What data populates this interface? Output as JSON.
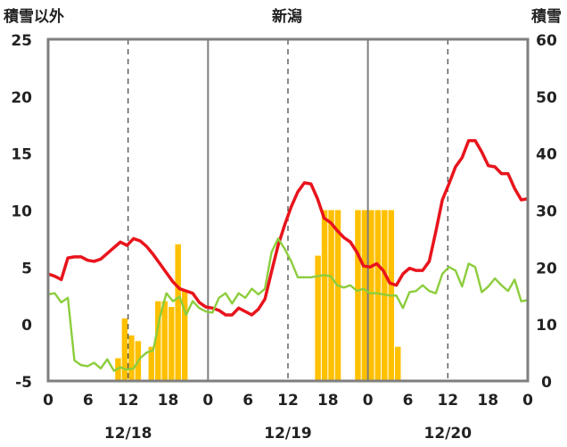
{
  "chart_data": {
    "type": "bar+line",
    "title": "新潟",
    "left_axis_label": "積雪以外",
    "right_axis_label": "積雪",
    "left_axis": {
      "min": -5,
      "max": 25,
      "ticks": [
        "25",
        "20",
        "15",
        "10",
        "5",
        "0",
        "-5"
      ]
    },
    "right_axis": {
      "min": 0,
      "max": 60,
      "ticks": [
        "60",
        "50",
        "40",
        "30",
        "20",
        "10",
        "0"
      ]
    },
    "x_axis": {
      "hour_ticks": [
        "0",
        "6",
        "12",
        "18",
        "0",
        "6",
        "12",
        "18",
        "0",
        "6",
        "12",
        "18",
        "0"
      ],
      "date_labels": [
        "12/18",
        "12/19",
        "12/20"
      ],
      "hours_total": 72
    },
    "grid": "dashed vertical at 12h, solid vertical at day boundaries",
    "colors": {
      "red": "#e8141c",
      "green": "#8ccd3c",
      "bars": "#ffc000",
      "baseline": "#7030a0",
      "frame": "#7f7f7f"
    },
    "series": [
      {
        "color": "red",
        "axis": "left",
        "values": [
          4.4,
          4.2,
          3.9,
          5.8,
          5.9,
          5.9,
          5.6,
          5.5,
          5.7,
          6.2,
          6.7,
          7.2,
          6.9,
          7.5,
          7.3,
          6.8,
          6.1,
          5.3,
          4.5,
          3.7,
          3.1,
          2.9,
          2.7,
          1.9,
          1.5,
          1.4,
          1.2,
          0.8,
          0.8,
          1.4,
          1.1,
          0.8,
          1.3,
          2.2,
          4.6,
          6.9,
          8.7,
          10.3,
          11.6,
          12.4,
          12.3,
          11,
          9.3,
          8.9,
          8.2,
          7.6,
          7.2,
          6.3,
          5.1,
          5,
          5.3,
          4.7,
          3.6,
          3.4,
          4.4,
          4.9,
          4.7,
          4.7,
          5.5,
          8.1,
          10.9,
          12.3,
          13.8,
          14.6,
          16.1,
          16.1,
          15.1,
          13.9,
          13.8,
          13.2,
          13.2,
          11.9,
          10.9,
          11
        ]
      },
      {
        "color": "green",
        "axis": "left",
        "values": [
          2.6,
          2.7,
          1.9,
          2.3,
          -3.2,
          -3.6,
          -3.7,
          -3.4,
          -3.9,
          -3.1,
          -4.1,
          -3.8,
          -4,
          -3.9,
          -3,
          -2.5,
          -2.3,
          0.6,
          2.7,
          2,
          2.4,
          0.8,
          2,
          1.4,
          1.1,
          1,
          2.3,
          2.7,
          1.8,
          2.7,
          2.3,
          3.1,
          2.6,
          3.1,
          6.3,
          7.5,
          6.6,
          5.5,
          4.1,
          4.1,
          4.1,
          4.2,
          4.3,
          4.2,
          3.4,
          3.2,
          3.4,
          2.9,
          3.1,
          2.7,
          2.7,
          2.6,
          2.5,
          2.5,
          1.4,
          2.8,
          2.9,
          3.4,
          2.9,
          2.7,
          4.4,
          5,
          4.7,
          3.3,
          5.3,
          5,
          2.8,
          3.3,
          4,
          3.4,
          2.9,
          3.9,
          2,
          2.1
        ]
      },
      {
        "color": "purple",
        "axis": "left",
        "values": [
          -5,
          -5
        ]
      }
    ],
    "bars": {
      "axis": "right",
      "color": "bars",
      "values": [
        0,
        0,
        0,
        0,
        0,
        0,
        0,
        0,
        0,
        0,
        4,
        11,
        8,
        7,
        0,
        6,
        14,
        14,
        13,
        24,
        16,
        0,
        0,
        0,
        0,
        0,
        0,
        0,
        0,
        0,
        0,
        0,
        0,
        0,
        0,
        0,
        0,
        0,
        0,
        0,
        22,
        30,
        30,
        30,
        0,
        0,
        30,
        30,
        30,
        30,
        30,
        30,
        6,
        0,
        0,
        0,
        0,
        0,
        0,
        0,
        0,
        0,
        0,
        0,
        0,
        0,
        0,
        0,
        0,
        0,
        0,
        0,
        0,
        0,
        0,
        0,
        0,
        0,
        0,
        0,
        0,
        0,
        0,
        0,
        0,
        0,
        0,
        0,
        0,
        0,
        0,
        0,
        0,
        0,
        0,
        0,
        0,
        0,
        0,
        0,
        0,
        0,
        0,
        0,
        0,
        0,
        0,
        0,
        0,
        0,
        0,
        0,
        0,
        0,
        0,
        0,
        0,
        0,
        0,
        0,
        0,
        0,
        0,
        0,
        0,
        0,
        0,
        0,
        0,
        0,
        0,
        0,
        0,
        0,
        0,
        0,
        0,
        0,
        0,
        0,
        0,
        0,
        0,
        0
      ],
      "note_hours_step": 0.5
    }
  }
}
